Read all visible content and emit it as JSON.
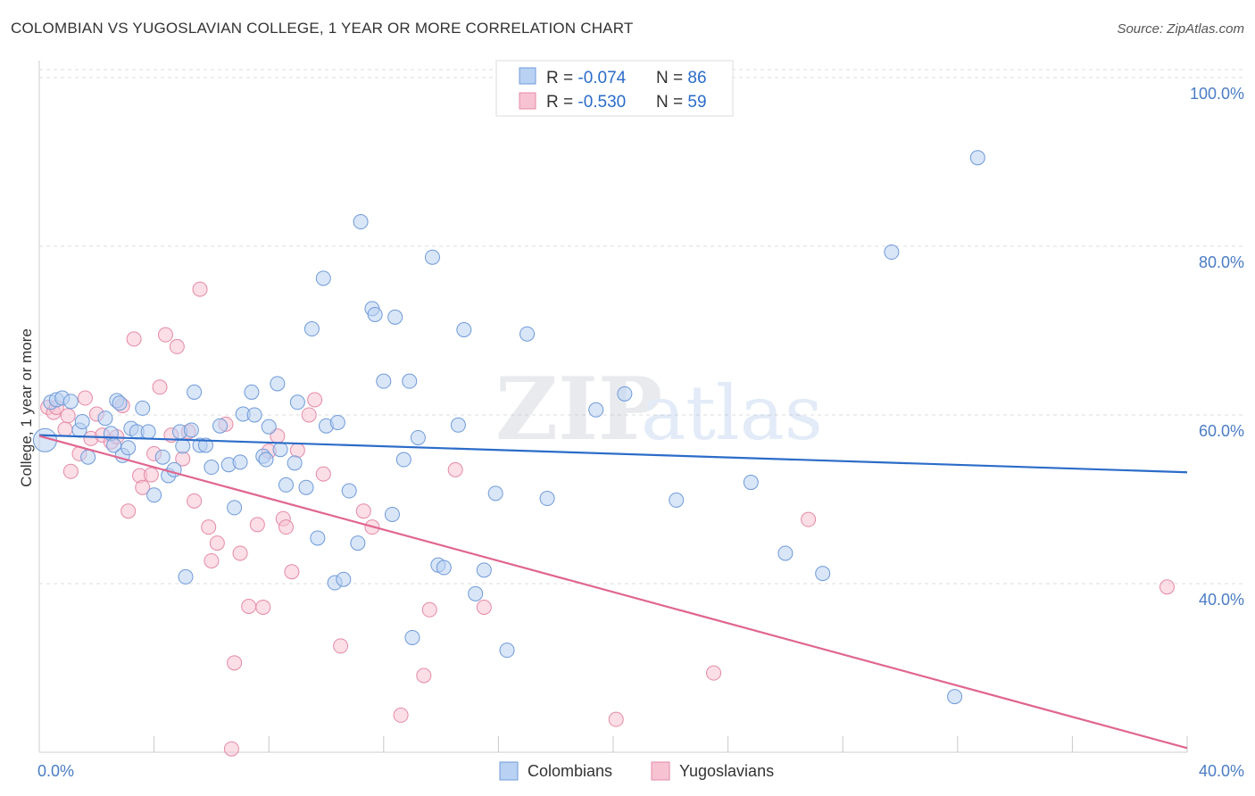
{
  "header": {
    "title": "COLOMBIAN VS YUGOSLAVIAN COLLEGE, 1 YEAR OR MORE CORRELATION CHART",
    "source": "Source: ZipAtlas.com"
  },
  "watermark": {
    "zip": "ZIP",
    "atlas": "atlas"
  },
  "colors": {
    "blue_fill": "#b9d1f2",
    "blue_stroke": "#6f9ad8",
    "blue_line": "#2b6cc8",
    "pink_fill": "#f7c3d2",
    "pink_stroke": "#e58aa8",
    "pink_line": "#e0668f",
    "value_text": "#2b6cc8",
    "grid": "#dddddd"
  },
  "stats_legend": {
    "rows": [
      {
        "r_label": "R = ",
        "r_value": "-0.074",
        "n_label": "N = ",
        "n_value": "86"
      },
      {
        "r_label": "R = ",
        "r_value": "-0.530",
        "n_label": "N = ",
        "n_value": "59"
      }
    ]
  },
  "chart_data": {
    "type": "scatter",
    "xlabel": "",
    "ylabel": "College, 1 year or more",
    "xlim": [
      0,
      40
    ],
    "ylim": [
      20,
      102
    ],
    "x_tick_labels": [
      "0.0%",
      "40.0%"
    ],
    "y_ticks": [
      40,
      60,
      80,
      100
    ],
    "y_tick_labels": [
      "40.0%",
      "60.0%",
      "80.0%",
      "100.0%"
    ],
    "grid": true,
    "legend_position": "bottom-center",
    "series": [
      {
        "name": "Colombians",
        "trend": {
          "x": [
            0,
            40
          ],
          "y": [
            57.6,
            53.2
          ]
        },
        "points": [
          [
            0.2,
            57.0
          ],
          [
            0.4,
            61.5
          ],
          [
            0.6,
            61.8
          ],
          [
            0.8,
            62.0
          ],
          [
            1.1,
            61.6
          ],
          [
            1.4,
            58.2
          ],
          [
            1.5,
            59.2
          ],
          [
            1.7,
            55.0
          ],
          [
            2.3,
            59.6
          ],
          [
            2.5,
            57.8
          ],
          [
            2.6,
            56.4
          ],
          [
            2.7,
            61.7
          ],
          [
            2.8,
            61.4
          ],
          [
            2.9,
            55.2
          ],
          [
            3.1,
            56.1
          ],
          [
            3.2,
            58.4
          ],
          [
            3.4,
            58.0
          ],
          [
            3.6,
            60.8
          ],
          [
            3.8,
            58.0
          ],
          [
            4.0,
            50.5
          ],
          [
            4.3,
            55.0
          ],
          [
            4.5,
            52.8
          ],
          [
            4.7,
            53.5
          ],
          [
            4.9,
            58.0
          ],
          [
            5.0,
            56.3
          ],
          [
            5.1,
            40.8
          ],
          [
            5.3,
            58.2
          ],
          [
            5.4,
            62.7
          ],
          [
            5.6,
            56.4
          ],
          [
            5.8,
            56.4
          ],
          [
            6.0,
            53.8
          ],
          [
            6.3,
            58.7
          ],
          [
            6.6,
            54.1
          ],
          [
            6.8,
            49.0
          ],
          [
            7.0,
            54.4
          ],
          [
            7.1,
            60.1
          ],
          [
            7.4,
            62.7
          ],
          [
            7.5,
            60.0
          ],
          [
            7.8,
            55.1
          ],
          [
            7.9,
            54.7
          ],
          [
            8.0,
            58.6
          ],
          [
            8.3,
            63.7
          ],
          [
            8.4,
            55.9
          ],
          [
            8.6,
            51.7
          ],
          [
            8.9,
            54.3
          ],
          [
            9.0,
            61.5
          ],
          [
            9.3,
            51.4
          ],
          [
            9.5,
            70.2
          ],
          [
            9.7,
            45.4
          ],
          [
            9.9,
            76.2
          ],
          [
            10.0,
            58.7
          ],
          [
            10.3,
            40.1
          ],
          [
            10.4,
            59.1
          ],
          [
            10.6,
            40.5
          ],
          [
            10.8,
            51.0
          ],
          [
            11.1,
            44.8
          ],
          [
            11.2,
            82.9
          ],
          [
            11.6,
            72.6
          ],
          [
            11.7,
            71.9
          ],
          [
            12.0,
            64.0
          ],
          [
            12.3,
            48.2
          ],
          [
            12.4,
            71.6
          ],
          [
            12.7,
            54.7
          ],
          [
            12.9,
            64.0
          ],
          [
            13.0,
            33.6
          ],
          [
            13.2,
            57.3
          ],
          [
            13.7,
            78.7
          ],
          [
            13.9,
            42.2
          ],
          [
            14.1,
            41.9
          ],
          [
            14.6,
            58.8
          ],
          [
            14.8,
            70.1
          ],
          [
            15.2,
            38.8
          ],
          [
            15.5,
            41.6
          ],
          [
            15.9,
            50.7
          ],
          [
            16.3,
            32.1
          ],
          [
            17.0,
            69.6
          ],
          [
            17.7,
            50.1
          ],
          [
            19.4,
            60.6
          ],
          [
            20.4,
            62.5
          ],
          [
            22.2,
            49.9
          ],
          [
            24.8,
            52.0
          ],
          [
            26.0,
            43.6
          ],
          [
            27.3,
            41.2
          ],
          [
            29.7,
            79.3
          ],
          [
            31.9,
            26.6
          ],
          [
            32.7,
            90.5
          ]
        ]
      },
      {
        "name": "Yugoslavians",
        "trend": {
          "x": [
            0,
            40
          ],
          "y": [
            57.5,
            20.5
          ]
        },
        "points": [
          [
            0.3,
            60.9
          ],
          [
            0.5,
            60.3
          ],
          [
            0.6,
            60.9
          ],
          [
            0.9,
            58.3
          ],
          [
            1.0,
            59.9
          ],
          [
            1.1,
            53.3
          ],
          [
            1.4,
            55.4
          ],
          [
            1.6,
            62.0
          ],
          [
            1.8,
            57.2
          ],
          [
            2.0,
            60.1
          ],
          [
            2.2,
            57.6
          ],
          [
            2.5,
            56.8
          ],
          [
            2.7,
            57.4
          ],
          [
            2.9,
            61.1
          ],
          [
            3.1,
            48.6
          ],
          [
            3.3,
            69.0
          ],
          [
            3.5,
            52.8
          ],
          [
            3.6,
            51.4
          ],
          [
            3.9,
            52.9
          ],
          [
            4.0,
            55.4
          ],
          [
            4.2,
            63.3
          ],
          [
            4.4,
            69.5
          ],
          [
            4.6,
            57.6
          ],
          [
            4.8,
            68.1
          ],
          [
            5.0,
            54.8
          ],
          [
            5.2,
            58.0
          ],
          [
            5.4,
            49.8
          ],
          [
            5.6,
            74.9
          ],
          [
            5.9,
            46.7
          ],
          [
            6.0,
            42.7
          ],
          [
            6.2,
            44.8
          ],
          [
            6.5,
            58.9
          ],
          [
            6.7,
            20.4
          ],
          [
            6.8,
            30.6
          ],
          [
            7.0,
            43.6
          ],
          [
            7.3,
            37.3
          ],
          [
            7.6,
            47.0
          ],
          [
            7.8,
            37.2
          ],
          [
            8.0,
            55.7
          ],
          [
            8.3,
            57.5
          ],
          [
            8.5,
            47.7
          ],
          [
            8.6,
            46.7
          ],
          [
            8.8,
            41.4
          ],
          [
            9.0,
            55.8
          ],
          [
            9.4,
            60.0
          ],
          [
            9.6,
            61.8
          ],
          [
            9.9,
            53.0
          ],
          [
            10.5,
            32.6
          ],
          [
            11.3,
            48.6
          ],
          [
            11.6,
            46.7
          ],
          [
            12.6,
            24.4
          ],
          [
            13.4,
            29.1
          ],
          [
            13.6,
            36.9
          ],
          [
            14.5,
            53.5
          ],
          [
            15.5,
            37.2
          ],
          [
            20.1,
            23.9
          ],
          [
            23.5,
            29.4
          ],
          [
            26.8,
            47.6
          ],
          [
            39.3,
            39.6
          ]
        ]
      }
    ]
  },
  "bottom_legend": {
    "items": [
      "Colombians",
      "Yugoslavians"
    ]
  }
}
